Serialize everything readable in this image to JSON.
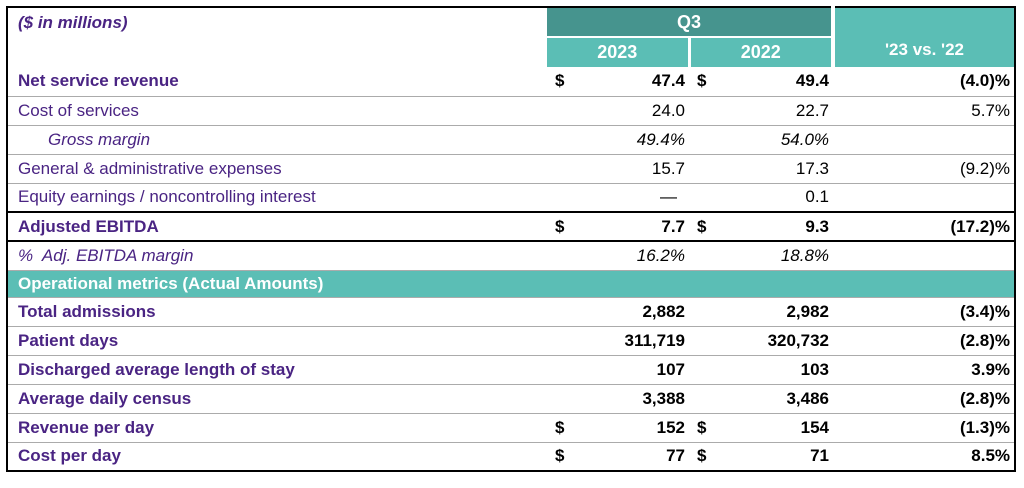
{
  "table": {
    "note": "($ in millions)",
    "header": {
      "group": "Q3",
      "y2023": "2023",
      "y2022": "2022",
      "vs": "'23 vs. '22"
    },
    "banner": "Operational metrics (Actual Amounts)",
    "colors": {
      "teal_dark": "#46948E",
      "teal_light": "#5BBEB5",
      "purple": "#4A2483",
      "grid_gray": "#ABABAB",
      "line_black": "#000000"
    },
    "rows": [
      {
        "label": "Net service revenue",
        "cur2023": "$",
        "v2023": "47.4",
        "cur2022": "$",
        "v2022": "49.4",
        "vs": "(4.0)%"
      },
      {
        "label": "Cost of services",
        "cur2023": "",
        "v2023": "24.0",
        "cur2022": "",
        "v2022": "22.7",
        "vs": "5.7%"
      },
      {
        "label": "Gross margin",
        "cur2023": "",
        "v2023": "49.4%",
        "cur2022": "",
        "v2022": "54.0%",
        "vs": ""
      },
      {
        "label": "General & administrative expenses",
        "cur2023": "",
        "v2023": "15.7",
        "cur2022": "",
        "v2022": "17.3",
        "vs": "(9.2)%"
      },
      {
        "label": "Equity earnings / noncontrolling interest",
        "cur2023": "",
        "v2023": "—",
        "cur2022": "",
        "v2022": "0.1",
        "vs": ""
      },
      {
        "label": "Adjusted EBITDA",
        "cur2023": "$",
        "v2023": "7.7",
        "cur2022": "$",
        "v2022": "9.3",
        "vs": "(17.2)%"
      },
      {
        "label": "%  Adj. EBITDA margin",
        "cur2023": "",
        "v2023": "16.2%",
        "cur2022": "",
        "v2022": "18.8%",
        "vs": ""
      },
      {
        "label": "Total admissions",
        "cur2023": "",
        "v2023": "2,882",
        "cur2022": "",
        "v2022": "2,982",
        "vs": "(3.4)%"
      },
      {
        "label": "Patient days",
        "cur2023": "",
        "v2023": "311,719",
        "cur2022": "",
        "v2022": "320,732",
        "vs": "(2.8)%"
      },
      {
        "label": "Discharged average length of stay",
        "cur2023": "",
        "v2023": "107",
        "cur2022": "",
        "v2022": "103",
        "vs": "3.9%"
      },
      {
        "label": "Average daily census",
        "cur2023": "",
        "v2023": "3,388",
        "cur2022": "",
        "v2022": "3,486",
        "vs": "(2.8)%"
      },
      {
        "label": "Revenue per day",
        "cur2023": "$",
        "v2023": "152",
        "cur2022": "$",
        "v2022": "154",
        "vs": "(1.3)%"
      },
      {
        "label": "Cost per day",
        "cur2023": "$",
        "v2023": "77",
        "cur2022": "$",
        "v2022": "71",
        "vs": "8.5%"
      }
    ]
  }
}
